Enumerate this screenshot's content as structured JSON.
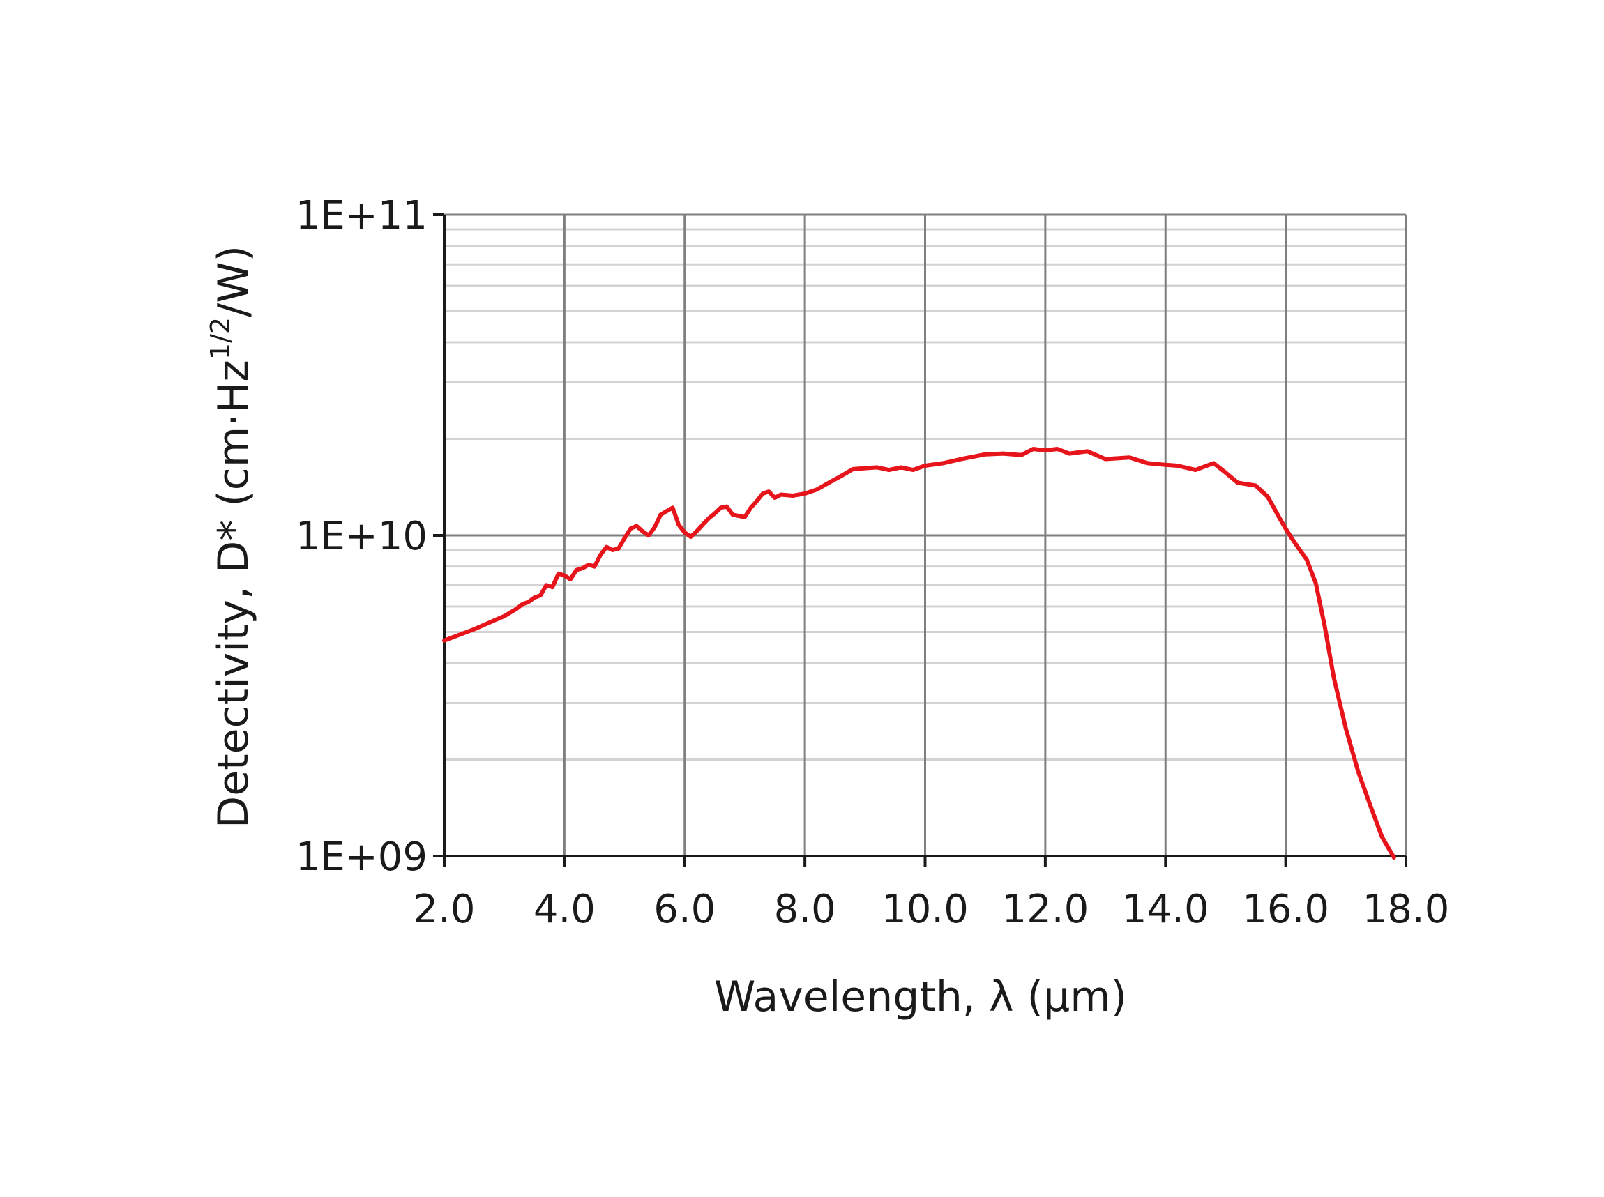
{
  "chart_data": {
    "type": "line",
    "title": "",
    "xlabel": "Wavelength, λ (µm)",
    "ylabel": {
      "main": "Detectivity, D* (cm·Hz",
      "superscript": "1/2",
      "tail": "/W)"
    },
    "xscale": "linear",
    "yscale": "log",
    "xlim": [
      2.0,
      18.0
    ],
    "ylim": [
      1000000000,
      100000000000
    ],
    "x_ticks": [
      2,
      4,
      6,
      8,
      10,
      12,
      14,
      16,
      18
    ],
    "x_tick_labels": [
      "2.0",
      "4.0",
      "6.0",
      "8.0",
      "10.0",
      "12.0",
      "14.0",
      "16.0",
      "18.0"
    ],
    "y_ticks": [
      1000000000,
      10000000000,
      100000000000
    ],
    "y_tick_labels": [
      "1E+09",
      "1E+10",
      "1E+11"
    ],
    "grid": true,
    "minor_grid": true,
    "legend": "none",
    "colors": {
      "line": "#e8141b",
      "major_grid": "#7f7f7f",
      "minor_grid": "#d3d3d3",
      "axis": "#1a1a1a"
    },
    "series": [
      {
        "x": [
          2.0,
          2.5,
          2.9,
          3.0,
          3.1,
          3.2,
          3.3,
          3.4,
          3.5,
          3.6,
          3.7,
          3.8,
          3.9,
          4.0,
          4.1,
          4.2,
          4.3,
          4.4,
          4.5,
          4.6,
          4.7,
          4.8,
          4.9,
          5.0,
          5.1,
          5.2,
          5.3,
          5.4,
          5.5,
          5.6,
          5.7,
          5.8,
          5.9,
          6.0,
          6.1,
          6.2,
          6.3,
          6.4,
          6.5,
          6.6,
          6.7,
          6.8,
          6.9,
          7.0,
          7.1,
          7.2,
          7.3,
          7.4,
          7.5,
          7.6,
          7.8,
          8.0,
          8.2,
          8.4,
          8.6,
          8.8,
          9.0,
          9.2,
          9.4,
          9.6,
          9.8,
          10.0,
          10.3,
          10.6,
          11.0,
          11.3,
          11.6,
          11.8,
          12.0,
          12.2,
          12.4,
          12.7,
          13.0,
          13.4,
          13.7,
          14.0,
          14.2,
          14.5,
          14.8,
          15.0,
          15.2,
          15.5,
          15.7,
          15.9,
          16.0,
          16.1,
          16.2,
          16.35,
          16.5,
          16.65,
          16.8,
          17.0,
          17.2,
          17.4,
          17.6,
          17.8
        ],
        "y": [
          4700000000.0,
          5100000000.0,
          5500000000.0,
          5600000000.0,
          5750000000.0,
          5900000000.0,
          6100000000.0,
          6200000000.0,
          6400000000.0,
          6500000000.0,
          7000000000.0,
          6900000000.0,
          7600000000.0,
          7500000000.0,
          7300000000.0,
          7800000000.0,
          7900000000.0,
          8100000000.0,
          8000000000.0,
          8700000000.0,
          9200000000.0,
          9000000000.0,
          9100000000.0,
          9800000000.0,
          10500000000.0,
          10700000000.0,
          10300000000.0,
          10000000000.0,
          10600000000.0,
          11600000000.0,
          11900000000.0,
          12200000000.0,
          10800000000.0,
          10200000000.0,
          9900000000.0,
          10300000000.0,
          10800000000.0,
          11300000000.0,
          11700000000.0,
          12200000000.0,
          12300000000.0,
          11600000000.0,
          11500000000.0,
          11400000000.0,
          12200000000.0,
          12800000000.0,
          13500000000.0,
          13700000000.0,
          13100000000.0,
          13400000000.0,
          13300000000.0,
          13500000000.0,
          13900000000.0,
          14600000000.0,
          15300000000.0,
          16100000000.0,
          16200000000.0,
          16300000000.0,
          16000000000.0,
          16300000000.0,
          16000000000.0,
          16500000000.0,
          16800000000.0,
          17300000000.0,
          17900000000.0,
          18000000000.0,
          17800000000.0,
          18600000000.0,
          18400000000.0,
          18600000000.0,
          18000000000.0,
          18300000000.0,
          17300000000.0,
          17500000000.0,
          16800000000.0,
          16600000000.0,
          16500000000.0,
          16000000000.0,
          16800000000.0,
          15700000000.0,
          14600000000.0,
          14300000000.0,
          13200000000.0,
          11300000000.0,
          10500000000.0,
          9800000000.0,
          9200000000.0,
          8400000000.0,
          7100000000.0,
          5200000000.0,
          3600000000.0,
          2500000000.0,
          1850000000.0,
          1450000000.0,
          1150000000.0,
          990000000.0
        ]
      }
    ]
  }
}
